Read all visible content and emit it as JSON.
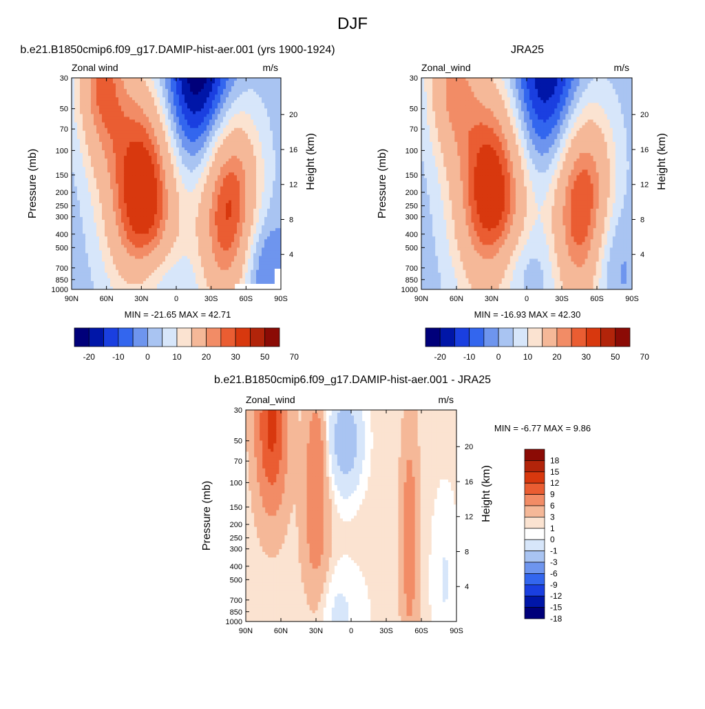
{
  "page_title": "DJF",
  "palette": {
    "12": [
      "#00007a",
      "#0016a8",
      "#1a3fe0",
      "#3366ee",
      "#6e95ee",
      "#a9c4f2",
      "#d7e6fa",
      "#fbe3d1",
      "#f5b898",
      "#f28c66",
      "#ea5d32",
      "#d8380e",
      "#b2240a",
      "#8b0b05"
    ],
    "16": [
      "#00007a",
      "#0016a8",
      "#1a3fe0",
      "#3366ee",
      "#6e95ee",
      "#a9c4f2",
      "#d7e6fa",
      "#ffffff",
      "#fbe3d1",
      "#f5b898",
      "#f28c66",
      "#ea5d32",
      "#d8380e",
      "#b2240a",
      "#8b0b05"
    ]
  },
  "chart_data": [
    {
      "type": "heatmap",
      "panel_title": "b.e21.B1850cmip6.f09_g17.DAMIP-hist-aer.001 (yrs 1900-1924)",
      "subtitle_left": "Zonal wind",
      "subtitle_right": "m/s",
      "ylabel": "Pressure (mb)",
      "ylabel_right": "Height (km)",
      "y_ticks": [
        30,
        50,
        70,
        100,
        150,
        200,
        250,
        300,
        400,
        500,
        700,
        850,
        1000
      ],
      "y_right_ticks": [
        "20",
        "16",
        "12",
        "8",
        "4"
      ],
      "x_ticks": [
        "90N",
        "60N",
        "30N",
        "0",
        "30S",
        "60S",
        "90S"
      ],
      "x_range": [
        90,
        -90
      ],
      "y_range_mb": [
        1000,
        30
      ],
      "stats_text": "MIN = -21.65  MAX =  42.71",
      "colorbar_labels": [
        "-20",
        "-10",
        "0",
        "10",
        "20",
        "30",
        "50",
        "70"
      ],
      "colorbar_levels": [
        -25,
        -20,
        -15,
        -10,
        -5,
        0,
        5,
        10,
        20,
        25,
        30,
        40,
        50,
        60,
        70
      ],
      "fill_outside": "#3f6eeb",
      "features": [
        {
          "lat": 29,
          "p": 200,
          "amp": 41,
          "slat": 22,
          "slog": 0.58
        },
        {
          "lat": -45,
          "p": 240,
          "amp": 37,
          "slat": 19,
          "slog": 0.56
        },
        {
          "lat": 65,
          "p": 30,
          "amp": 26,
          "slat": 15,
          "slog": 0.42
        },
        {
          "lat": -20,
          "p": 30,
          "amp": -30,
          "slat": 23,
          "slog": 0.5
        },
        {
          "lat": 20,
          "p": 850,
          "amp": -10,
          "slat": 20,
          "slog": 0.2
        },
        {
          "lat": -72,
          "p": 700,
          "amp": -13,
          "slat": 15,
          "slog": 0.3
        }
      ],
      "base": -3
    },
    {
      "type": "heatmap",
      "panel_title": "JRA25",
      "subtitle_left": "Zonal_wind",
      "subtitle_right": "m/s",
      "ylabel": "Pressure (mb)",
      "ylabel_right": "Height (km)",
      "y_ticks": [
        30,
        50,
        70,
        100,
        150,
        200,
        250,
        300,
        400,
        500,
        700,
        850,
        1000
      ],
      "y_right_ticks": [
        "20",
        "16",
        "12",
        "8",
        "4"
      ],
      "x_ticks": [
        "90N",
        "60N",
        "30N",
        "0",
        "30S",
        "60S",
        "90S"
      ],
      "x_range": [
        90,
        -90
      ],
      "y_range_mb": [
        1000,
        30
      ],
      "stats_text": "MIN = -16.93  MAX =  42.30",
      "colorbar_labels": [
        "-20",
        "-10",
        "0",
        "10",
        "20",
        "30",
        "50",
        "70"
      ],
      "colorbar_levels": [
        -25,
        -20,
        -15,
        -10,
        -5,
        0,
        5,
        10,
        20,
        25,
        30,
        40,
        50,
        60,
        70
      ],
      "fill_outside": null,
      "features": [
        {
          "lat": 30,
          "p": 200,
          "amp": 40,
          "slat": 22,
          "slog": 0.58
        },
        {
          "lat": -47,
          "p": 240,
          "amp": 36,
          "slat": 19,
          "slog": 0.56
        },
        {
          "lat": 65,
          "p": 30,
          "amp": 21,
          "slat": 15,
          "slog": 0.4
        },
        {
          "lat": -18,
          "p": 30,
          "amp": -25,
          "slat": 23,
          "slog": 0.5
        },
        {
          "lat": 10,
          "p": 700,
          "amp": -9,
          "slat": 22,
          "slog": 0.22
        },
        {
          "lat": -70,
          "p": 600,
          "amp": -10,
          "slat": 14,
          "slog": 0.32
        }
      ],
      "base": -3
    },
    {
      "type": "heatmap",
      "panel_title": "b.e21.B1850cmip6.f09_g17.DAMIP-hist-aer.001 - JRA25",
      "subtitle_left": "Zonal_wind",
      "subtitle_right": "m/s",
      "ylabel": "Pressure (mb)",
      "ylabel_right": "Height (km)",
      "y_ticks": [
        30,
        50,
        70,
        100,
        150,
        200,
        250,
        300,
        400,
        500,
        700,
        850,
        1000
      ],
      "y_right_ticks": [
        "20",
        "16",
        "12",
        "8",
        "4"
      ],
      "x_ticks": [
        "90N",
        "60N",
        "30N",
        "0",
        "30S",
        "60S",
        "90S"
      ],
      "x_range": [
        90,
        -90
      ],
      "y_range_mb": [
        1000,
        30
      ],
      "stats_text": "MIN =  -6.77  MAX =   9.86",
      "colorbar_labels": [
        "18",
        "15",
        "12",
        "9",
        "6",
        "3",
        "1",
        "0",
        "-1",
        "-3",
        "-6",
        "-9",
        "-12",
        "-15",
        "-18"
      ],
      "colorbar_levels": [
        -18,
        -15,
        -12,
        -9,
        -6,
        -3,
        -1,
        0,
        1,
        3,
        6,
        9,
        12,
        15,
        18
      ],
      "fill_outside": "#d7e6fa",
      "features": [
        {
          "lat": 68,
          "p": 40,
          "amp": 9.5,
          "slat": 9,
          "slog": 0.4
        },
        {
          "lat": 30,
          "p": 200,
          "amp": 4,
          "slat": 8,
          "slog": 0.5
        },
        {
          "lat": 5,
          "p": 50,
          "amp": -5.5,
          "slat": 10,
          "slog": 0.25
        },
        {
          "lat": -50,
          "p": 250,
          "amp": 4.5,
          "slat": 5,
          "slog": 0.55
        },
        {
          "lat": 30,
          "p": 50,
          "amp": 3,
          "slat": 5,
          "slog": 0.2
        },
        {
          "lat": 15,
          "p": 850,
          "amp": -1.8,
          "slat": 18,
          "slog": 0.25
        },
        {
          "lat": -80,
          "p": 500,
          "amp": -1.5,
          "slat": 8,
          "slog": 0.45
        }
      ],
      "base": 0.4
    }
  ]
}
